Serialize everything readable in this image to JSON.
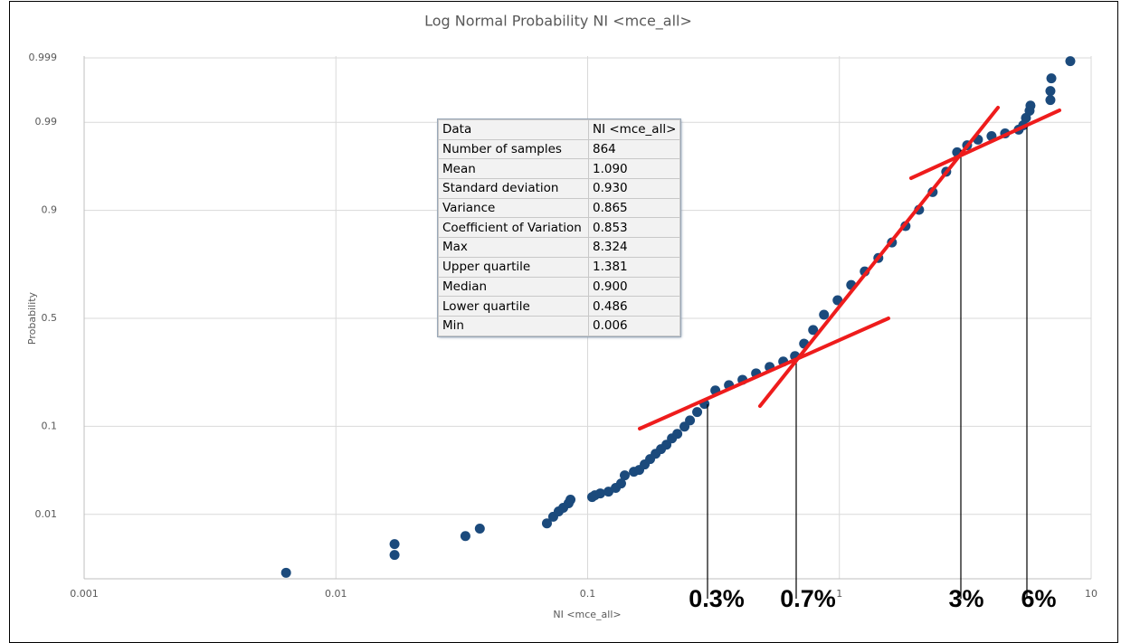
{
  "chart_data": {
    "type": "scatter",
    "title": "Log Normal Probability  NI <mce_all>",
    "xlabel": "NI <mce_all>",
    "ylabel": "Probability",
    "xscale": "log",
    "yscale": "probit",
    "grid": true,
    "xlim": [
      0.001,
      10
    ],
    "xticks": [
      0.001,
      0.01,
      0.1,
      1,
      10
    ],
    "ylim": [
      0.001,
      0.999
    ],
    "yticks": [
      0.01,
      0.1,
      0.5,
      0.9,
      0.99,
      0.999
    ],
    "series": [
      {
        "color": "#1b4a7c",
        "x": [
          0.00634,
          0.0171,
          0.0171,
          0.0327,
          0.0373,
          0.0689,
          0.073,
          0.0767,
          0.08,
          0.084,
          0.0855,
          0.1042,
          0.1069,
          0.1123,
          0.121,
          0.1293,
          0.1358,
          0.1404,
          0.1526,
          0.1603,
          0.1685,
          0.1771,
          0.1862,
          0.1956,
          0.2056,
          0.2161,
          0.2271,
          0.2425,
          0.2549,
          0.2723,
          0.2911,
          0.3216,
          0.3641,
          0.4122,
          0.4667,
          0.5284,
          0.5983,
          0.6664,
          0.724,
          0.7865,
          0.8686,
          0.9836,
          1.114,
          1.261,
          1.428,
          1.617,
          1.831,
          2.073,
          2.347,
          2.657,
          2.935,
          3.217,
          3.551,
          4.021,
          4.553,
          5.155,
          5.372,
          5.508,
          5.694,
          5.742,
          6.889,
          6.889,
          6.95,
          8.265
        ],
        "values": [
          0.00127,
          0.0025,
          0.0037,
          0.0049,
          0.0063,
          0.0075,
          0.0093,
          0.011,
          0.0123,
          0.0141,
          0.0157,
          0.017,
          0.0179,
          0.0189,
          0.0199,
          0.0221,
          0.025,
          0.0312,
          0.0344,
          0.036,
          0.0415,
          0.0475,
          0.0541,
          0.0603,
          0.0669,
          0.0772,
          0.0853,
          0.0994,
          0.113,
          0.133,
          0.155,
          0.196,
          0.214,
          0.233,
          0.257,
          0.282,
          0.304,
          0.327,
          0.382,
          0.445,
          0.517,
          0.585,
          0.654,
          0.711,
          0.763,
          0.816,
          0.863,
          0.901,
          0.933,
          0.959,
          0.9756,
          0.98,
          0.983,
          0.9847,
          0.9859,
          0.9874,
          0.989,
          0.9913,
          0.9931,
          0.9942,
          0.9952,
          0.9965,
          0.9978,
          0.99886
        ]
      }
    ],
    "annotations": [
      "0.3%",
      "0.7%",
      "3%",
      "6%"
    ]
  },
  "stats_table": {
    "rows": [
      [
        "Data",
        "NI <mce_all>"
      ],
      [
        "Number of samples",
        "864"
      ],
      [
        "Mean",
        "1.090"
      ],
      [
        "Standard deviation",
        "0.930"
      ],
      [
        "Variance",
        "0.865"
      ],
      [
        "Coefficient of Variation",
        "0.853"
      ],
      [
        "Max",
        "8.324"
      ],
      [
        "Upper quartile",
        "1.381"
      ],
      [
        "Median",
        "0.900"
      ],
      [
        "Lower quartile",
        "0.486"
      ],
      [
        "Min",
        "0.006"
      ]
    ]
  }
}
